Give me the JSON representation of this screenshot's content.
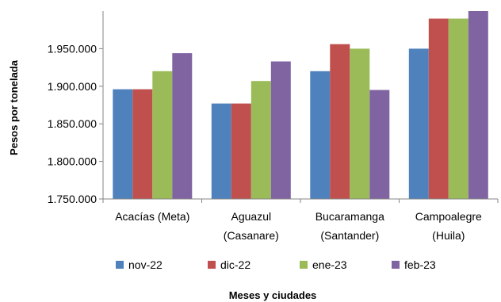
{
  "chart_data": {
    "type": "bar",
    "title": "",
    "xlabel": "Meses y ciudades",
    "ylabel": "Pesos por tonelada",
    "ylim": [
      1750000,
      2000000
    ],
    "yticks": [
      1750000,
      1800000,
      1850000,
      1900000,
      1950000
    ],
    "ytick_labels": [
      "1.750.000",
      "1.800.000",
      "1.850.000",
      "1.900.000",
      "1.950.000"
    ],
    "categories": [
      [
        "Acacías (Meta)"
      ],
      [
        "Aguazul",
        "(Casanare)"
      ],
      [
        "Bucaramanga",
        "(Santander)"
      ],
      [
        "Campoalegre",
        "(Huila)"
      ]
    ],
    "series": [
      {
        "name": "nov-22",
        "color": "#4F81BD",
        "values": [
          1896000,
          1877000,
          1920000,
          1950000
        ]
      },
      {
        "name": "dic-22",
        "color": "#C0504D",
        "values": [
          1896000,
          1877000,
          1956000,
          1990000
        ]
      },
      {
        "name": "ene-23",
        "color": "#9BBB59",
        "values": [
          1920000,
          1907000,
          1950000,
          1990000
        ]
      },
      {
        "name": "feb-23",
        "color": "#8064A2",
        "values": [
          1944000,
          1933000,
          1895000,
          2000000
        ]
      }
    ],
    "grid": false,
    "legend_position": "bottom"
  }
}
